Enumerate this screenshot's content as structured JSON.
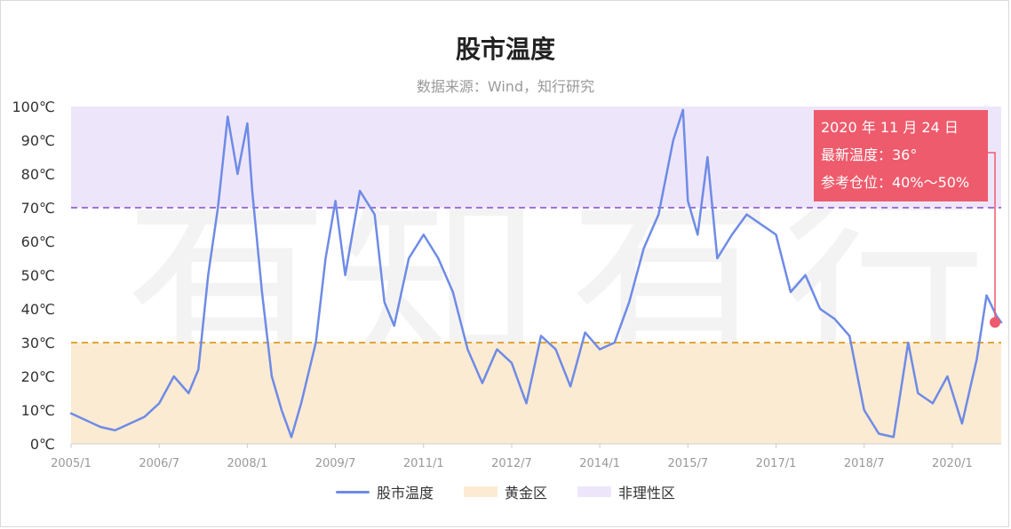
{
  "chart_data": {
    "type": "line",
    "title": "股市温度",
    "subtitle": "数据来源：Wind，知行研究",
    "x_range": [
      "2005/1",
      "2020/11"
    ],
    "x_tick_labels": [
      "2005/1",
      "2006/7",
      "2008/1",
      "2009/7",
      "2011/1",
      "2012/7",
      "2014/1",
      "2015/7",
      "2017/1",
      "2018/7",
      "2020/1"
    ],
    "ylim": [
      0,
      100
    ],
    "y_tick_labels": [
      "0℃",
      "10℃",
      "20℃",
      "30℃",
      "40℃",
      "50℃",
      "60℃",
      "70℃",
      "80℃",
      "90℃",
      "100℃"
    ],
    "series": [
      {
        "name": "股市温度",
        "color": "#6e8be6",
        "points": [
          [
            "2005/1",
            9
          ],
          [
            "2005/4",
            7
          ],
          [
            "2005/7",
            5
          ],
          [
            "2005/10",
            4
          ],
          [
            "2006/1",
            6
          ],
          [
            "2006/4",
            8
          ],
          [
            "2006/7",
            12
          ],
          [
            "2006/10",
            20
          ],
          [
            "2007/1",
            15
          ],
          [
            "2007/3",
            22
          ],
          [
            "2007/5",
            50
          ],
          [
            "2007/7",
            70
          ],
          [
            "2007/9",
            97
          ],
          [
            "2007/11",
            80
          ],
          [
            "2008/1",
            95
          ],
          [
            "2008/2",
            75
          ],
          [
            "2008/4",
            45
          ],
          [
            "2008/6",
            20
          ],
          [
            "2008/8",
            10
          ],
          [
            "2008/10",
            2
          ],
          [
            "2008/12",
            12
          ],
          [
            "2009/3",
            30
          ],
          [
            "2009/5",
            55
          ],
          [
            "2009/7",
            72
          ],
          [
            "2009/9",
            50
          ],
          [
            "2009/12",
            75
          ],
          [
            "2010/3",
            68
          ],
          [
            "2010/5",
            42
          ],
          [
            "2010/7",
            35
          ],
          [
            "2010/10",
            55
          ],
          [
            "2011/1",
            62
          ],
          [
            "2011/4",
            55
          ],
          [
            "2011/7",
            45
          ],
          [
            "2011/10",
            28
          ],
          [
            "2012/1",
            18
          ],
          [
            "2012/4",
            28
          ],
          [
            "2012/7",
            24
          ],
          [
            "2012/10",
            12
          ],
          [
            "2013/1",
            32
          ],
          [
            "2013/4",
            28
          ],
          [
            "2013/7",
            17
          ],
          [
            "2013/10",
            33
          ],
          [
            "2014/1",
            28
          ],
          [
            "2014/4",
            30
          ],
          [
            "2014/7",
            42
          ],
          [
            "2014/10",
            58
          ],
          [
            "2015/1",
            68
          ],
          [
            "2015/4",
            90
          ],
          [
            "2015/6",
            99
          ],
          [
            "2015/7",
            72
          ],
          [
            "2015/9",
            62
          ],
          [
            "2015/11",
            85
          ],
          [
            "2016/1",
            55
          ],
          [
            "2016/4",
            62
          ],
          [
            "2016/7",
            68
          ],
          [
            "2016/10",
            65
          ],
          [
            "2017/1",
            62
          ],
          [
            "2017/4",
            45
          ],
          [
            "2017/7",
            50
          ],
          [
            "2017/10",
            40
          ],
          [
            "2018/1",
            37
          ],
          [
            "2018/4",
            32
          ],
          [
            "2018/7",
            10
          ],
          [
            "2018/10",
            3
          ],
          [
            "2019/1",
            2
          ],
          [
            "2019/4",
            30
          ],
          [
            "2019/6",
            15
          ],
          [
            "2019/9",
            12
          ],
          [
            "2019/12",
            20
          ],
          [
            "2020/3",
            6
          ],
          [
            "2020/6",
            25
          ],
          [
            "2020/8",
            44
          ],
          [
            "2020/10",
            38
          ],
          [
            "2020/11",
            36
          ]
        ]
      }
    ],
    "bands": [
      {
        "name": "黄金区",
        "from": 0,
        "to": 30,
        "color": "#fcebd3"
      },
      {
        "name": "非理性区",
        "from": 70,
        "to": 100,
        "color": "#ede6fb"
      }
    ],
    "reference_lines": [
      {
        "value": 70,
        "color": "#a074d6",
        "style": "dashed"
      },
      {
        "value": 30,
        "color": "#e0a53a",
        "style": "dashed"
      }
    ],
    "annotation": {
      "date_label": "2020 年 11 月 24 日",
      "temperature_label": "最新温度：36°",
      "position_label": "参考仓位：40%～50%",
      "value": 36,
      "color": "#ee5b6c"
    },
    "legend": [
      "股市温度",
      "黄金区",
      "非理性区"
    ],
    "legend_position": "bottom",
    "grid": false
  }
}
